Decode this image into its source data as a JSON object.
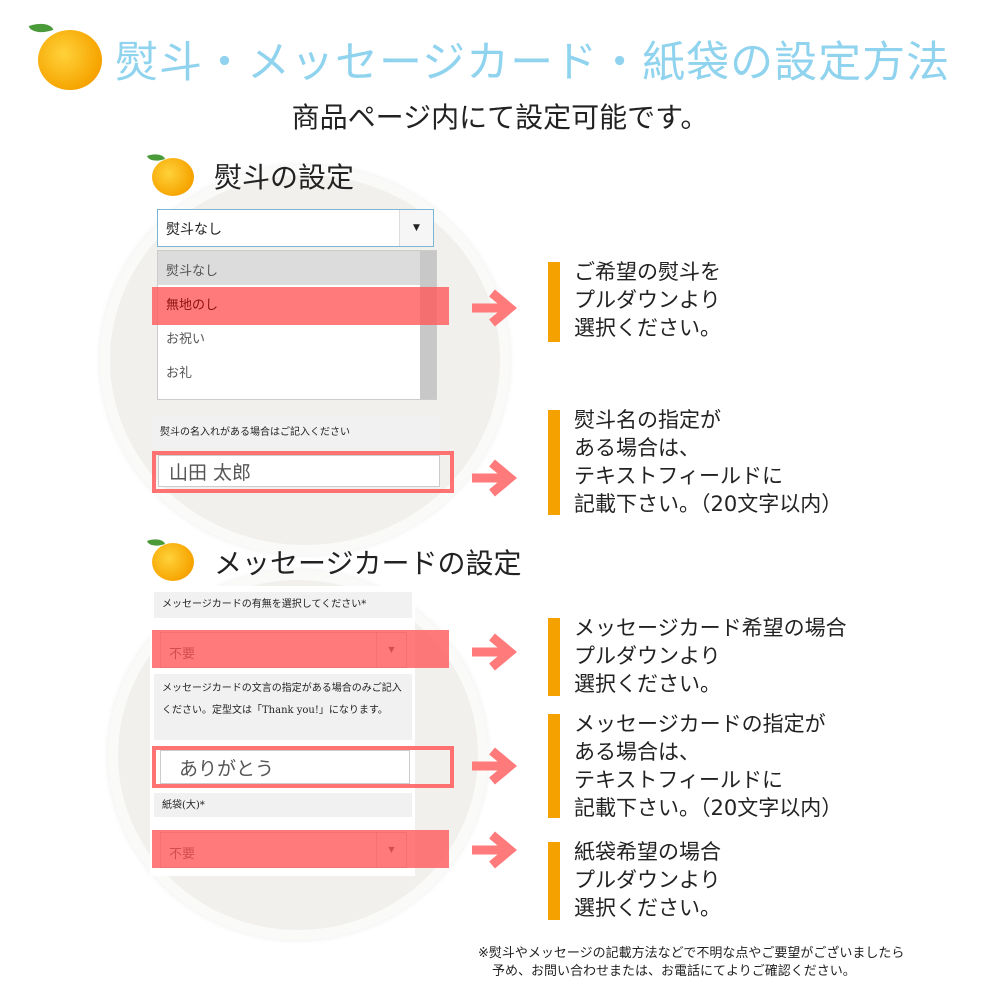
{
  "title": "熨斗・メッセージカード・紙袋の設定方法",
  "subtitle": "商品ページ内にて設定可能です。",
  "noshi": {
    "heading": "熨斗の設定",
    "select_value": "熨斗なし",
    "options": [
      "熨斗なし",
      "無地のし",
      "お祝い",
      "お礼"
    ],
    "name_label": "熨斗の名入れがある場合はご記入ください",
    "name_value": "山田 太郎",
    "desc1": [
      "ご希望の熨斗を",
      "プルダウンより",
      "選択ください。"
    ],
    "desc2": [
      "熨斗名の指定が",
      "ある場合は、",
      "テキストフィールドに",
      "記載下さい。（20文字以内）"
    ]
  },
  "card": {
    "heading": "メッセージカードの設定",
    "select_label": "メッセージカードの有無を選択してください*",
    "select_value": "不要",
    "text_label": "メッセージカードの文言の指定がある場合のみご記入ください。定型文は「Thank you!」になります。",
    "text_value": "ありがとう",
    "bag_label": "紙袋(大)*",
    "bag_value": "不要",
    "desc1": [
      "メッセージカード希望の場合",
      "プルダウンより",
      "選択ください。"
    ],
    "desc2": [
      "メッセージカードの指定が",
      "ある場合は、",
      "テキストフィールドに",
      "記載下さい。（20文字以内）"
    ],
    "desc3": [
      "紙袋希望の場合",
      "プルダウンより",
      "選択ください。"
    ]
  },
  "footnote": [
    "※熨斗やメッセージの記載方法などで不明な点やご要望がございましたら",
    "予め、お問い合わせまたは、お電話にてよりご確認ください。"
  ],
  "colors": {
    "title": "#8fd3ee",
    "highlight": "#ff7a7a",
    "accent_bar": "#f5a100"
  }
}
